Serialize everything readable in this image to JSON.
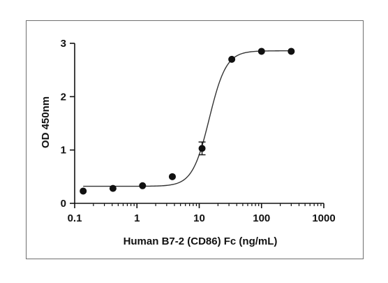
{
  "chart_data": {
    "type": "scatter",
    "title": "",
    "xlabel": "Human B7-2 (CD86) Fc (ng/mL)",
    "ylabel": "OD 450nm",
    "x_scale": "log",
    "xlim": [
      0.1,
      1000
    ],
    "ylim": [
      0,
      3
    ],
    "x_ticks": [
      0.1,
      1,
      10,
      100,
      1000
    ],
    "x_tick_labels": [
      "0.1",
      "1",
      "10",
      "100",
      "1000"
    ],
    "y_ticks": [
      0,
      1,
      2,
      3
    ],
    "y_tick_labels": [
      "0",
      "1",
      "2",
      "3"
    ],
    "grid": false,
    "legend": "none",
    "series": [
      {
        "points": [
          {
            "x": 0.137,
            "y": 0.23
          },
          {
            "x": 0.412,
            "y": 0.28
          },
          {
            "x": 1.23,
            "y": 0.33
          },
          {
            "x": 3.7,
            "y": 0.5
          },
          {
            "x": 11.1,
            "y": 1.03,
            "err": 0.12
          },
          {
            "x": 33.3,
            "y": 2.7
          },
          {
            "x": 100,
            "y": 2.85
          },
          {
            "x": 300,
            "y": 2.85
          }
        ],
        "fit": {
          "bottom": 0.32,
          "top": 2.86,
          "ec50": 14.5,
          "hill": 3.2
        }
      }
    ],
    "colors": {
      "marker": "#111111",
      "line": "#333333",
      "axis": "#111111"
    }
  }
}
